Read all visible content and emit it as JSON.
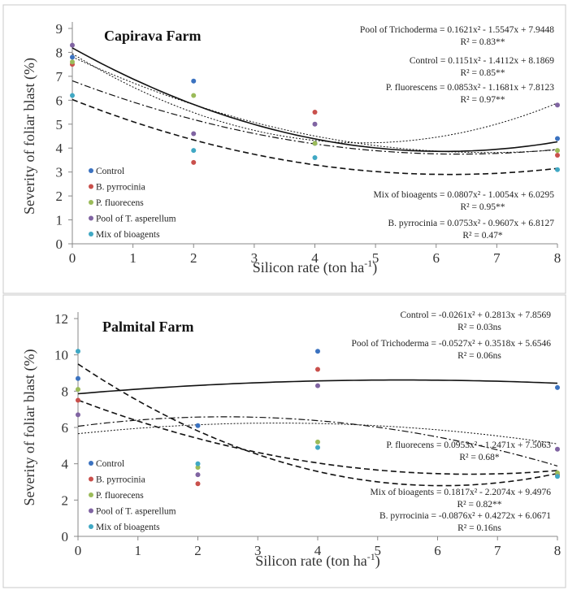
{
  "chart_data": [
    {
      "type": "scatter",
      "title": "Capirava Farm",
      "xlabel": "Silicon rate (ton ha",
      "xlabel_sup": "-1",
      "xlabel_tail": ")",
      "ylabel": "Severity of foliar blast (%)",
      "xlim": [
        0,
        8
      ],
      "ylim": [
        0,
        9
      ],
      "xticks": [
        "0",
        "1",
        "2",
        "3",
        "4",
        "5",
        "6",
        "7",
        "8"
      ],
      "yticks": [
        "0",
        "1",
        "2",
        "3",
        "4",
        "5",
        "6",
        "7",
        "8",
        "9"
      ],
      "grid": false,
      "legend_position": "left-bottom",
      "x": [
        0,
        2,
        4,
        8
      ],
      "series": [
        {
          "name": "Control",
          "color": "#3b72c0",
          "values": [
            7.8,
            6.8,
            4.2,
            4.4
          ]
        },
        {
          "name": "B. pyrrocinia",
          "color": "#c9504c",
          "values": [
            7.5,
            3.4,
            5.5,
            3.7
          ]
        },
        {
          "name": "P. fluorecens",
          "color": "#9bbb59",
          "values": [
            7.6,
            6.2,
            4.2,
            3.9
          ]
        },
        {
          "name": "Pool of T. asperellum",
          "color": "#8064a2",
          "values": [
            8.3,
            4.6,
            5.0,
            5.8
          ]
        },
        {
          "name": "Mix of bioagents",
          "color": "#40a8c4",
          "values": [
            6.2,
            3.9,
            3.6,
            3.1
          ]
        }
      ],
      "trendlines": [
        {
          "label": "Pool of Trichoderma",
          "coef": [
            0.1621,
            -1.5547,
            7.9448
          ],
          "dash": "2,2",
          "width": 1.0
        },
        {
          "label": "Control",
          "coef": [
            0.1151,
            -1.4112,
            8.1869
          ],
          "dash": "",
          "width": 1.6
        },
        {
          "label": "P. fluorescens",
          "coef": [
            0.0853,
            -1.1681,
            7.8123
          ],
          "dash": "2,2",
          "width": 1.0
        },
        {
          "label": "Mix of bioagents",
          "coef": [
            0.0807,
            -1.0054,
            6.0295
          ],
          "dash": "7,4",
          "width": 1.6
        },
        {
          "label": "B. pyrrocinia",
          "coef": [
            0.0753,
            -0.9607,
            6.8127
          ],
          "dash": "8,3,2,3",
          "width": 1.2
        }
      ],
      "equations": [
        {
          "eq": "Pool of Trichoderma = 0.1621x² - 1.5547x + 7.9448",
          "r2": "R² = 0.83**"
        },
        {
          "eq": "Control = 0.1151x² - 1.4112x + 8.1869",
          "r2": "R² = 0.85**"
        },
        {
          "eq": "P. fluorescens = 0.0853x² - 1.1681x + 7.8123",
          "r2": "R² = 0.97**"
        },
        {
          "eq": "Mix of bioagents = 0.0807x² - 1.0054x + 6.0295",
          "r2": "R² = 0.95**"
        },
        {
          "eq": "B. pyrrocinia = 0.0753x² - 0.9607x + 6.8127",
          "r2": "R² = 0.47*"
        }
      ]
    },
    {
      "type": "scatter",
      "title": "Palmital Farm",
      "xlabel": "Silicon rate (ton ha",
      "xlabel_sup": "-1",
      "xlabel_tail": ")",
      "ylabel": "Severity of foliar blast (%)",
      "xlim": [
        0,
        8
      ],
      "ylim": [
        0,
        12
      ],
      "xticks": [
        "0",
        "1",
        "2",
        "3",
        "4",
        "5",
        "6",
        "7",
        "8"
      ],
      "yticks": [
        "0",
        "2",
        "4",
        "6",
        "8",
        "10",
        "12"
      ],
      "grid": false,
      "legend_position": "left-bottom",
      "x": [
        0,
        2,
        4,
        8
      ],
      "series": [
        {
          "name": "Control",
          "color": "#3b72c0",
          "values": [
            8.7,
            6.1,
            10.2,
            8.2
          ]
        },
        {
          "name": "B. pyrrocinia",
          "color": "#c9504c",
          "values": [
            7.5,
            2.9,
            9.2,
            3.4
          ]
        },
        {
          "name": "P. fluorecens",
          "color": "#9bbb59",
          "values": [
            8.1,
            3.8,
            5.2,
            3.5
          ]
        },
        {
          "name": "Pool of T. asperellum",
          "color": "#8064a2",
          "values": [
            6.7,
            3.4,
            8.3,
            4.8
          ]
        },
        {
          "name": "Mix of bioagents",
          "color": "#40a8c4",
          "values": [
            10.2,
            4.0,
            4.9,
            3.3
          ]
        }
      ],
      "trendlines": [
        {
          "label": "Control",
          "coef": [
            -0.0261,
            0.2813,
            7.8569
          ],
          "dash": "",
          "width": 1.6
        },
        {
          "label": "Pool of Trichoderma",
          "coef": [
            -0.0527,
            0.3518,
            5.6546
          ],
          "dash": "2,2",
          "width": 1.0
        },
        {
          "label": "P. fluorecens",
          "coef": [
            0.0953,
            -1.2471,
            7.5063
          ],
          "dash": "7,4",
          "width": 1.6
        },
        {
          "label": "Mix of bioagents",
          "coef": [
            0.1817,
            -2.2074,
            9.4976
          ],
          "dash": "7,4",
          "width": 1.6
        },
        {
          "label": "B. pyrrocinia",
          "coef": [
            -0.0876,
            0.4272,
            6.0671
          ],
          "dash": "8,3,2,3",
          "width": 1.2
        }
      ],
      "equations": [
        {
          "eq": "Control = -0.0261x² + 0.2813x + 7.8569",
          "r2": "R² = 0.03ns"
        },
        {
          "eq": "Pool of Trichoderma = -0.0527x² + 0.3518x + 5.6546",
          "r2": "R² = 0.06ns"
        },
        {
          "eq": "P. fluorecens = 0.0953x² - 1.2471x + 7.5063",
          "r2": "R² = 0.68*"
        },
        {
          "eq": "Mix of bioagents = 0.1817x² - 2.2074x + 9.4976",
          "r2": "R² = 0.82**"
        },
        {
          "eq": "B. pyrrocinia = -0.0876x² + 0.4272x + 6.0671",
          "r2": "R² = 0.16ns"
        }
      ]
    }
  ]
}
